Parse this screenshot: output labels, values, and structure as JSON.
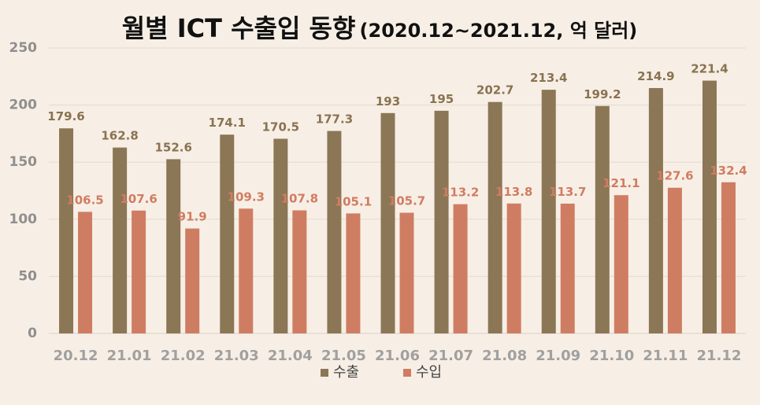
{
  "chart_data": {
    "type": "bar",
    "title": "월별 ICT 수출입 동향",
    "subtitle": "(2020.12~2021.12, 억 달러)",
    "categories": [
      "20.12",
      "21.01",
      "21.02",
      "21.03",
      "21.04",
      "21.05",
      "21.06",
      "21.07",
      "21.08",
      "21.09",
      "21.10",
      "21.11",
      "21.12"
    ],
    "series": [
      {
        "name": "수출",
        "color": "#8b7656",
        "values": [
          179.6,
          162.8,
          152.6,
          174.1,
          170.5,
          177.3,
          193,
          195,
          202.7,
          213.4,
          199.2,
          214.9,
          221.4
        ],
        "labels": [
          "179.6",
          "162.8",
          "152.6",
          "174.1",
          "170.5",
          "177.3",
          "193",
          "195",
          "202.7",
          "213.4",
          "199.2",
          "214.9",
          "221.4"
        ]
      },
      {
        "name": "수입",
        "color": "#cf7d62",
        "values": [
          106.5,
          107.6,
          91.9,
          109.3,
          107.8,
          105.1,
          105.7,
          113.2,
          113.8,
          113.7,
          121.1,
          127.6,
          132.4
        ],
        "labels": [
          "106.5",
          "107.6",
          "91.9",
          "109.3",
          "107.8",
          "105.1",
          "105.7",
          "113.2",
          "113.8",
          "113.7",
          "121.1",
          "127.6",
          "132.4"
        ]
      }
    ],
    "ylim": [
      0,
      250
    ],
    "yticks": [
      0,
      50,
      100,
      150,
      200,
      250
    ],
    "grid": true,
    "legend": {
      "position": "bottom-center",
      "items": [
        {
          "name": "수출",
          "color": "#8b7656"
        },
        {
          "name": "수입",
          "color": "#cf7d62"
        }
      ]
    }
  }
}
